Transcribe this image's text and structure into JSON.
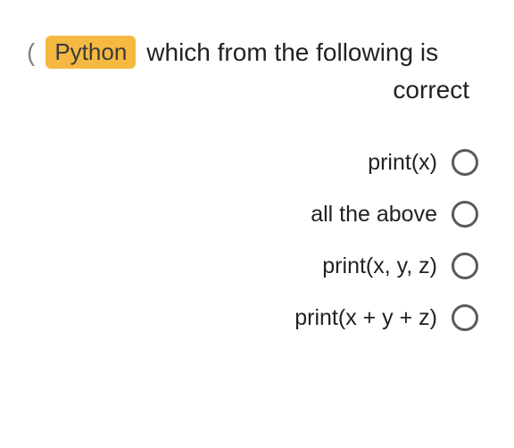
{
  "badge": {
    "label": "Python",
    "background_color": "#f5b942",
    "text_color": "#3a3a3a"
  },
  "question": {
    "line1": "which from the following is",
    "line2": "correct"
  },
  "options": [
    {
      "label": "print(x)",
      "selected": false
    },
    {
      "label": "all the above",
      "selected": false
    },
    {
      "label": "print(x, y, z)",
      "selected": false
    },
    {
      "label": "print(x + y + z)",
      "selected": false
    }
  ],
  "paren_char": "(",
  "styling": {
    "background_color": "#ffffff",
    "text_color": "#222222",
    "radio_border_color": "#5a5a5a",
    "question_fontsize": 28,
    "option_fontsize": 25,
    "radio_size": 30,
    "radio_border_width": 3
  }
}
